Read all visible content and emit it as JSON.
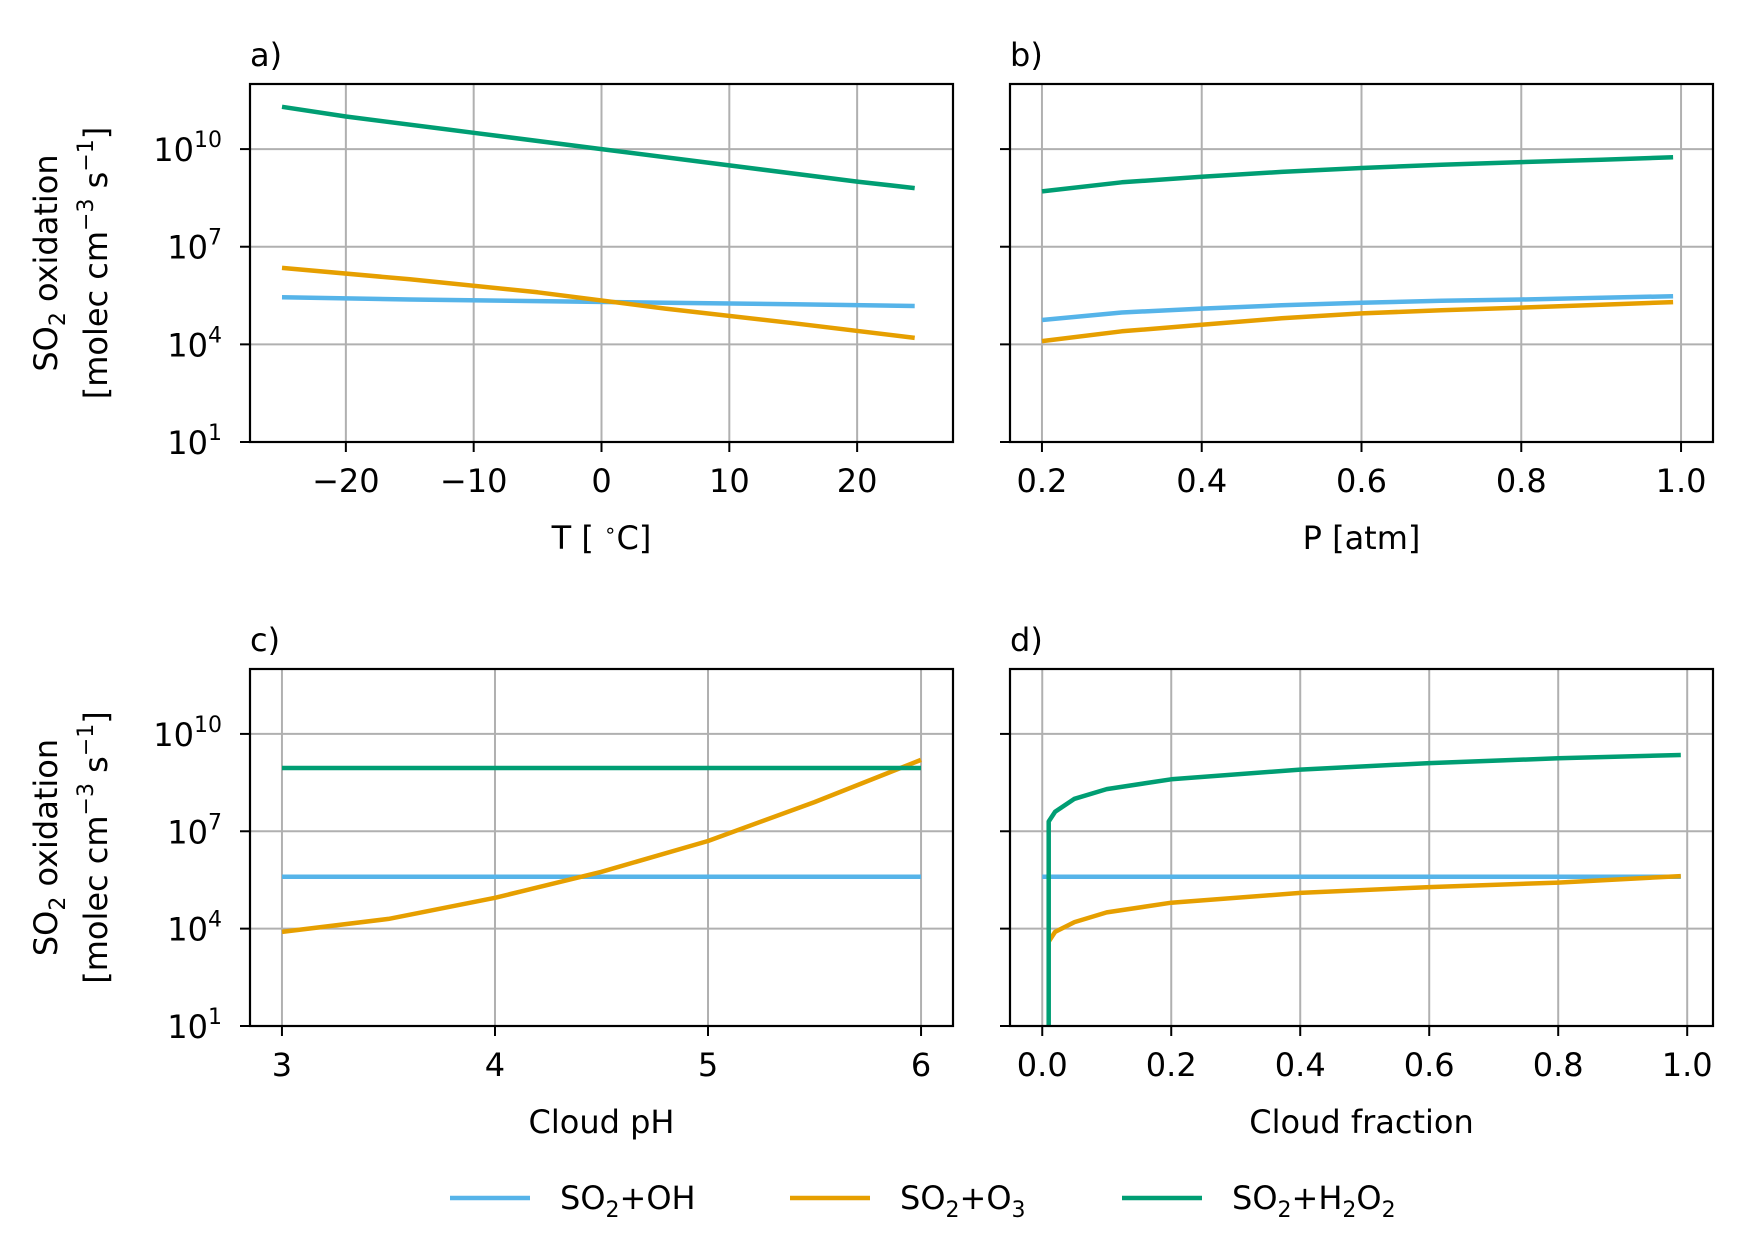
{
  "colors": {
    "oh": "#56B4E9",
    "o3": "#E69F00",
    "h2o2": "#009E73",
    "grid": "#b0b0b0",
    "axis": "#000000"
  },
  "legend": {
    "placement": "bottom-center",
    "items": [
      {
        "key": "oh",
        "species": "SO",
        "sub1": "2",
        "rest": "+OH"
      },
      {
        "key": "o3",
        "species": "SO",
        "sub1": "2",
        "rest": "+O",
        "sub2": "3"
      },
      {
        "key": "h2o2",
        "species": "SO",
        "sub1": "2",
        "rest": "+H",
        "sub2": "2",
        "rest2": "O",
        "sub3": "2"
      }
    ]
  },
  "ylabel": {
    "line1_pre": "SO",
    "line1_sub": "2",
    "line1_post": " oxidation",
    "line2_pre": "[molec cm",
    "line2_sup1": "−3",
    "line2_mid": " s",
    "line2_sup2": "−1",
    "line2_post": "]"
  },
  "chart_data": [
    {
      "type": "line",
      "panel": "a)",
      "xlabel": "T [ ∘C]",
      "xlim": [
        -27.5,
        27.5
      ],
      "xticks": [
        -20,
        -10,
        0,
        10,
        20
      ],
      "xtick_labels": [
        "−20",
        "−10",
        "0",
        "10",
        "20"
      ],
      "yscale": "log",
      "ylim_log10": [
        1,
        12
      ],
      "yticks_log10": [
        1,
        4,
        7,
        10
      ],
      "show_ytick_labels": true,
      "grid": true,
      "series": [
        {
          "key": "oh",
          "x": [
            -25,
            -15,
            -5,
            5,
            15,
            24.5
          ],
          "log10_y": [
            5.45,
            5.38,
            5.33,
            5.28,
            5.23,
            5.18
          ]
        },
        {
          "key": "o3",
          "x": [
            -25,
            -15,
            -5,
            5,
            15,
            24.5
          ],
          "log10_y": [
            6.35,
            6.0,
            5.6,
            5.1,
            4.65,
            4.2
          ]
        },
        {
          "key": "h2o2",
          "x": [
            -25,
            -20,
            -10,
            0,
            10,
            20,
            24.5
          ],
          "log10_y": [
            11.3,
            11.0,
            10.5,
            10.0,
            9.5,
            9.0,
            8.8
          ]
        }
      ]
    },
    {
      "type": "line",
      "panel": "b)",
      "xlabel": "P [atm]",
      "xlim": [
        0.16,
        1.04
      ],
      "xticks": [
        0.2,
        0.4,
        0.6,
        0.8,
        1.0
      ],
      "xtick_labels": [
        "0.2",
        "0.4",
        "0.6",
        "0.8",
        "1.0"
      ],
      "yscale": "log",
      "ylim_log10": [
        1,
        12
      ],
      "yticks_log10": [
        1,
        4,
        7,
        10
      ],
      "show_ytick_labels": false,
      "grid": true,
      "series": [
        {
          "key": "oh",
          "x": [
            0.2,
            0.3,
            0.4,
            0.5,
            0.6,
            0.7,
            0.8,
            0.9,
            0.99
          ],
          "log10_y": [
            4.75,
            4.98,
            5.1,
            5.2,
            5.28,
            5.34,
            5.38,
            5.43,
            5.48
          ]
        },
        {
          "key": "o3",
          "x": [
            0.2,
            0.3,
            0.4,
            0.5,
            0.6,
            0.7,
            0.8,
            0.9,
            0.99
          ],
          "log10_y": [
            4.1,
            4.4,
            4.6,
            4.8,
            4.95,
            5.05,
            5.13,
            5.22,
            5.3
          ]
        },
        {
          "key": "h2o2",
          "x": [
            0.2,
            0.3,
            0.4,
            0.5,
            0.6,
            0.7,
            0.8,
            0.9,
            0.99
          ],
          "log10_y": [
            8.7,
            8.98,
            9.15,
            9.3,
            9.42,
            9.52,
            9.6,
            9.67,
            9.75
          ]
        }
      ]
    },
    {
      "type": "line",
      "panel": "c)",
      "xlabel": "Cloud pH",
      "xlim": [
        2.85,
        6.15
      ],
      "xticks": [
        3,
        4,
        5,
        6
      ],
      "xtick_labels": [
        "3",
        "4",
        "5",
        "6"
      ],
      "yscale": "log",
      "ylim_log10": [
        1,
        12
      ],
      "yticks_log10": [
        1,
        4,
        7,
        10
      ],
      "show_ytick_labels": true,
      "grid": true,
      "series": [
        {
          "key": "oh",
          "x": [
            3,
            6
          ],
          "log10_y": [
            5.6,
            5.6
          ]
        },
        {
          "key": "o3",
          "x": [
            3,
            3.5,
            4,
            4.5,
            5,
            5.5,
            6
          ],
          "log10_y": [
            3.9,
            4.3,
            4.95,
            5.75,
            6.7,
            7.9,
            9.2
          ]
        },
        {
          "key": "h2o2",
          "x": [
            3,
            6
          ],
          "log10_y": [
            8.95,
            8.95
          ]
        }
      ]
    },
    {
      "type": "line",
      "panel": "d)",
      "xlabel": "Cloud fraction",
      "xlim": [
        -0.05,
        1.04
      ],
      "xticks": [
        0.0,
        0.2,
        0.4,
        0.6,
        0.8,
        1.0
      ],
      "xtick_labels": [
        "0.0",
        "0.2",
        "0.4",
        "0.6",
        "0.8",
        "1.0"
      ],
      "yscale": "log",
      "ylim_log10": [
        1,
        12
      ],
      "yticks_log10": [
        1,
        4,
        7,
        10
      ],
      "show_ytick_labels": false,
      "grid": true,
      "series": [
        {
          "key": "oh",
          "x": [
            0.0,
            0.99
          ],
          "log10_y": [
            5.6,
            5.6
          ]
        },
        {
          "key": "o3",
          "x": [
            0.01,
            0.02,
            0.05,
            0.1,
            0.2,
            0.4,
            0.6,
            0.8,
            0.99
          ],
          "log10_y": [
            3.6,
            3.9,
            4.2,
            4.5,
            4.8,
            5.1,
            5.28,
            5.42,
            5.62
          ]
        },
        {
          "key": "h2o2",
          "x": [
            0.01,
            0.01,
            0.02,
            0.05,
            0.1,
            0.2,
            0.4,
            0.6,
            0.8,
            0.99
          ],
          "log10_y": [
            1.0,
            7.3,
            7.6,
            8.0,
            8.3,
            8.6,
            8.9,
            9.1,
            9.25,
            9.35
          ]
        }
      ]
    }
  ]
}
